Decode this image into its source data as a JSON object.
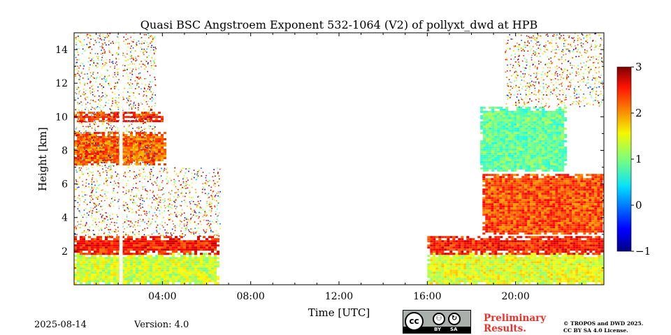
{
  "chart_data": {
    "type": "heatmap",
    "title": "Quasi BSC Angstroem Exponent 532-1064 (V2) of pollyxt_dwd at HPB",
    "xlabel": "Time [UTC]",
    "ylabel": "Height [km]",
    "xlim_hours": [
      0,
      24
    ],
    "ylim_km": [
      0,
      15
    ],
    "x_ticks": [
      {
        "hour": 4,
        "label": "04:00"
      },
      {
        "hour": 8,
        "label": "08:00"
      },
      {
        "hour": 12,
        "label": "12:00"
      },
      {
        "hour": 16,
        "label": "16:00"
      },
      {
        "hour": 20,
        "label": "20:00"
      }
    ],
    "y_ticks": [
      {
        "km": 2,
        "label": "2"
      },
      {
        "km": 4,
        "label": "4"
      },
      {
        "km": 6,
        "label": "6"
      },
      {
        "km": 8,
        "label": "8"
      },
      {
        "km": 10,
        "label": "10"
      },
      {
        "km": 12,
        "label": "12"
      },
      {
        "km": 14,
        "label": "14"
      }
    ],
    "colorbar": {
      "min": -1,
      "max": 3,
      "colormap": "jet",
      "ticks": [
        {
          "value": 3,
          "label": "3"
        },
        {
          "value": 2,
          "label": "2"
        },
        {
          "value": 1,
          "label": "1"
        },
        {
          "value": 0,
          "label": "0"
        },
        {
          "value": -1,
          "label": "−1"
        }
      ]
    },
    "regions": [
      {
        "name": "boundary-layer-night",
        "t0": 0.0,
        "t1": 6.5,
        "h0": 0.0,
        "h1": 1.9,
        "value": 1.3
      },
      {
        "name": "layer-top-night",
        "t0": 0.0,
        "t1": 6.5,
        "h0": 1.9,
        "h1": 2.9,
        "value": 2.4
      },
      {
        "name": "elevated-layer",
        "t0": 0.0,
        "t1": 4.1,
        "h0": 7.2,
        "h1": 9.1,
        "value": 2.1
      },
      {
        "name": "thin-layer-10km",
        "t0": 0.0,
        "t1": 4.0,
        "h0": 9.8,
        "h1": 10.3,
        "value": 2.3
      },
      {
        "name": "boundary-layer-evening",
        "t0": 16.0,
        "t1": 24.0,
        "h0": 0.0,
        "h1": 1.9,
        "value": 1.4
      },
      {
        "name": "layer-top-evening",
        "t0": 16.0,
        "t1": 24.0,
        "h0": 1.9,
        "h1": 2.9,
        "value": 2.4
      },
      {
        "name": "aerosol-layer-evening",
        "t0": 18.5,
        "t1": 24.0,
        "h0": 3.0,
        "h1": 6.6,
        "value": 2.2
      },
      {
        "name": "cloud-layer",
        "t0": 18.4,
        "t1": 22.2,
        "h0": 6.8,
        "h1": 10.6,
        "value": 0.9
      }
    ],
    "noise_areas": [
      {
        "t0": 0.0,
        "t1": 3.7,
        "h0": 2.9,
        "h1": 15.0
      },
      {
        "t0": 3.7,
        "t1": 6.6,
        "h0": 2.9,
        "h1": 7.0
      },
      {
        "t0": 19.5,
        "t1": 24.0,
        "h0": 10.6,
        "h1": 15.0
      }
    ],
    "gaps": [
      {
        "t0": 2.05,
        "t1": 2.2
      }
    ]
  },
  "footer": {
    "date": "2025-08-14",
    "version": "Version: 4.0",
    "preliminary_line1": "Preliminary",
    "preliminary_line2": "Results.",
    "copyright_line1": "© TROPOS and DWD 2025.",
    "copyright_line2": "CC BY SA 4.0 License.",
    "license_badge": {
      "cc": "cc",
      "by": "BY",
      "sa": "SA"
    }
  }
}
